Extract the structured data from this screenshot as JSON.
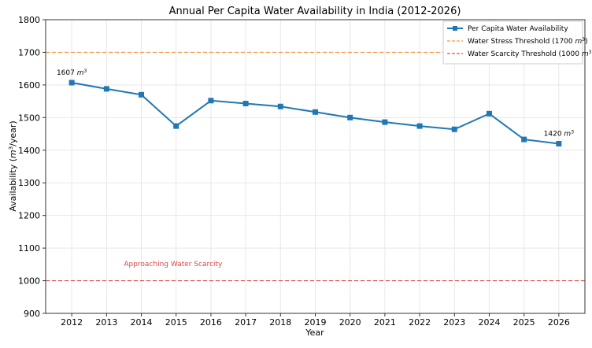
{
  "chart_data": {
    "type": "line",
    "title": "Annual Per Capita Water Availability in India (2012-2026)",
    "xlabel": "Year",
    "ylabel": "Availability (m³/year)",
    "ylabel_parts": {
      "pre": "Availability (",
      "m": "m",
      "sup": "3",
      "post": "/year)"
    },
    "x": [
      2012,
      2013,
      2014,
      2015,
      2016,
      2017,
      2018,
      2019,
      2020,
      2021,
      2022,
      2023,
      2024,
      2025,
      2026
    ],
    "xticks": [
      "2012",
      "2013",
      "2014",
      "2015",
      "2016",
      "2017",
      "2018",
      "2019",
      "2020",
      "2021",
      "2022",
      "2023",
      "2024",
      "2025",
      "2026"
    ],
    "yticks": [
      "900",
      "1000",
      "1100",
      "1200",
      "1300",
      "1400",
      "1500",
      "1600",
      "1700",
      "1800"
    ],
    "ylim": [
      900,
      1800
    ],
    "xlim": [
      2011.25,
      2026.75
    ],
    "grid": true,
    "series": [
      {
        "name": "Per Capita Water Availability",
        "color": "#1f77b4",
        "marker": "square",
        "values": [
          1607,
          1588,
          1570,
          1474,
          1552,
          1543,
          1534,
          1517,
          1500,
          1486,
          1474,
          1464,
          1512,
          1433,
          1420
        ]
      }
    ],
    "reference_lines": [
      {
        "name": "Water Stress Threshold (1700 m³)",
        "legend_pre": "Water Stress Threshold (1700 ",
        "y": 1700,
        "color": "#ff7f0e",
        "style": "dashed"
      },
      {
        "name": "Water Scarcity Threshold (1000 m³)",
        "legend_pre": "Water Scarcity Threshold (1000 ",
        "y": 1000,
        "color": "#d62728",
        "style": "dashed"
      }
    ],
    "annotations": [
      {
        "text_num": "1607 ",
        "text": "1607 m³",
        "x": 2012,
        "y": 1607
      },
      {
        "text_num": "1420 ",
        "text": "1420 m³",
        "x": 2026,
        "y": 1420
      },
      {
        "text": "Approaching Water Scarcity",
        "x": 2013.0,
        "y": 1055,
        "color": "#d62728"
      }
    ],
    "legend_position": "top-right"
  }
}
